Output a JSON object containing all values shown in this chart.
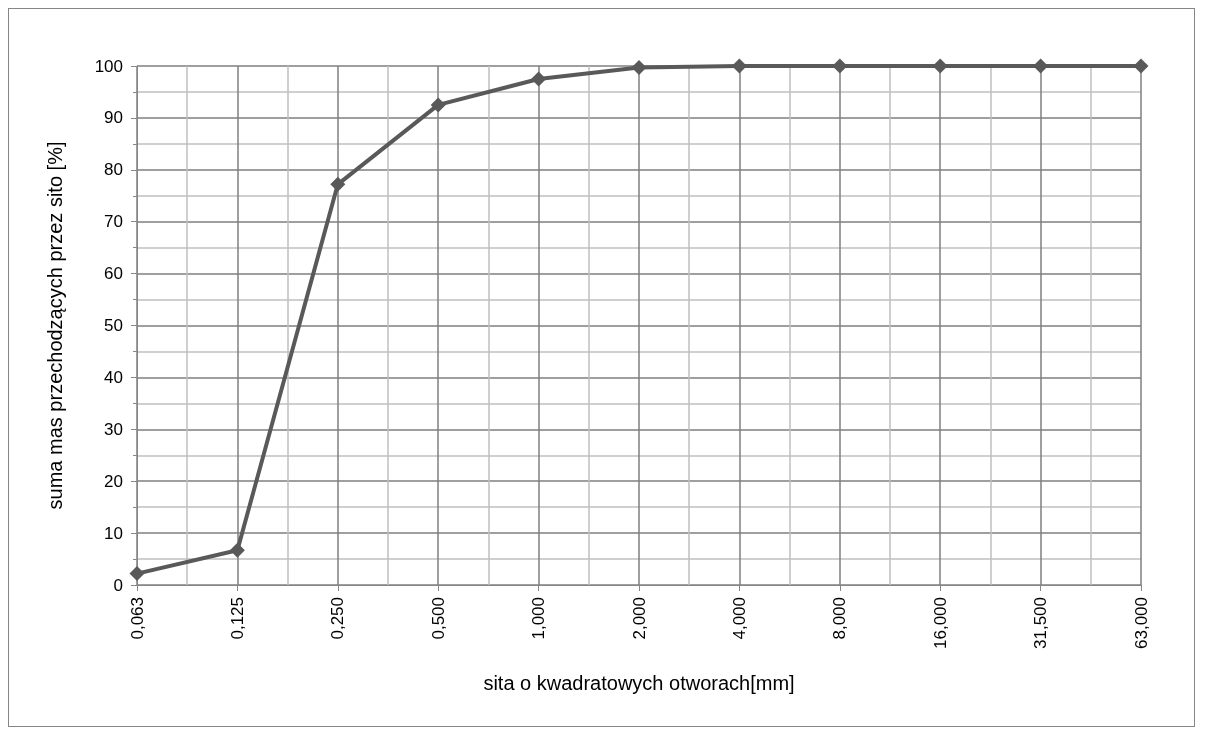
{
  "chart_data": {
    "type": "line",
    "xlabel": "sita o kwadratowych otworach[mm]",
    "ylabel": "suma mas przechodzących przez sito [%]",
    "categories": [
      "0,063",
      "0,125",
      "0,250",
      "0,500",
      "1,000",
      "2,000",
      "4,000",
      "8,000",
      "16,000",
      "31,500",
      "63,000"
    ],
    "series": [
      {
        "color": "#595959",
        "values": [
          2.2,
          6.7,
          77.2,
          92.5,
          97.5,
          99.7,
          100,
          100,
          100,
          100,
          100
        ]
      }
    ],
    "ylim": [
      0,
      100
    ],
    "yticks": [
      0,
      10,
      20,
      30,
      40,
      50,
      60,
      70,
      80,
      90,
      100
    ],
    "grid": true,
    "marker": "diamond",
    "line_style": "solid"
  }
}
